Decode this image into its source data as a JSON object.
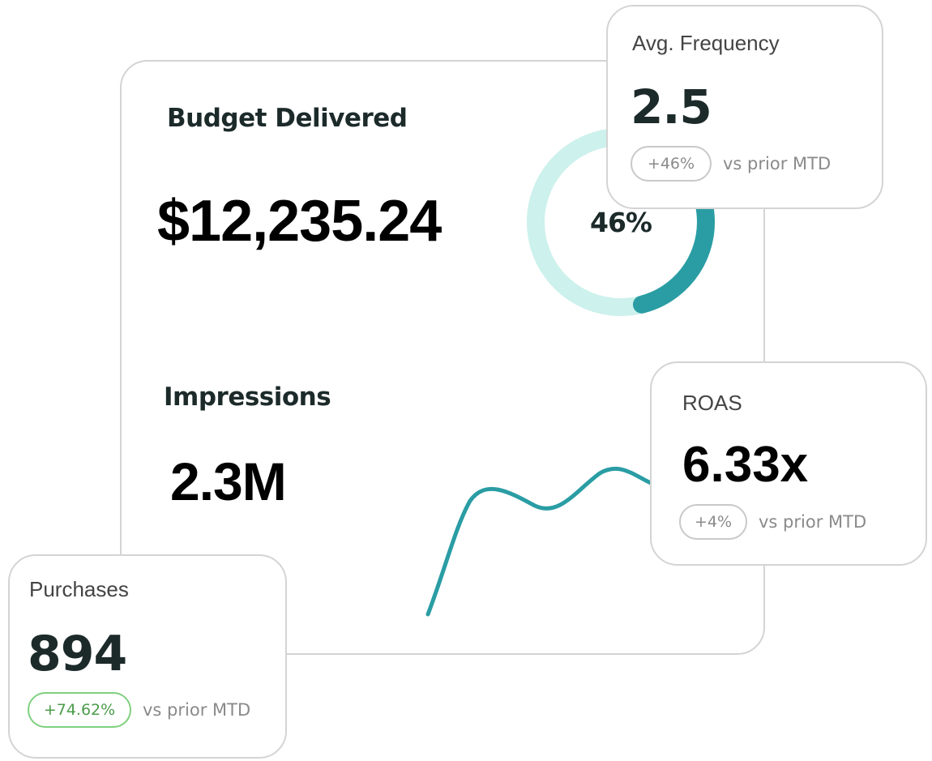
{
  "budget": {
    "title": "Budget Delivered",
    "amount": "$12,235.24",
    "percent_label": "46%",
    "percent_fraction": 0.46,
    "track_color": "#cdf1ec",
    "fill_color": "#2a9da4"
  },
  "impressions": {
    "title": "Impressions",
    "value": "2.3M",
    "trend_color": "#2a9da4"
  },
  "avg_frequency": {
    "title": "Avg. Frequency",
    "value": "2.5",
    "change": "+46%",
    "comparison": "vs prior MTD"
  },
  "roas": {
    "title": "ROAS",
    "value": "6.33x",
    "change": "+4%",
    "comparison": "vs prior MTD"
  },
  "purchases": {
    "title": "Purchases",
    "value": "894",
    "change": "+74.62%",
    "comparison": "vs prior MTD",
    "change_color": "#4c9c4c"
  }
}
